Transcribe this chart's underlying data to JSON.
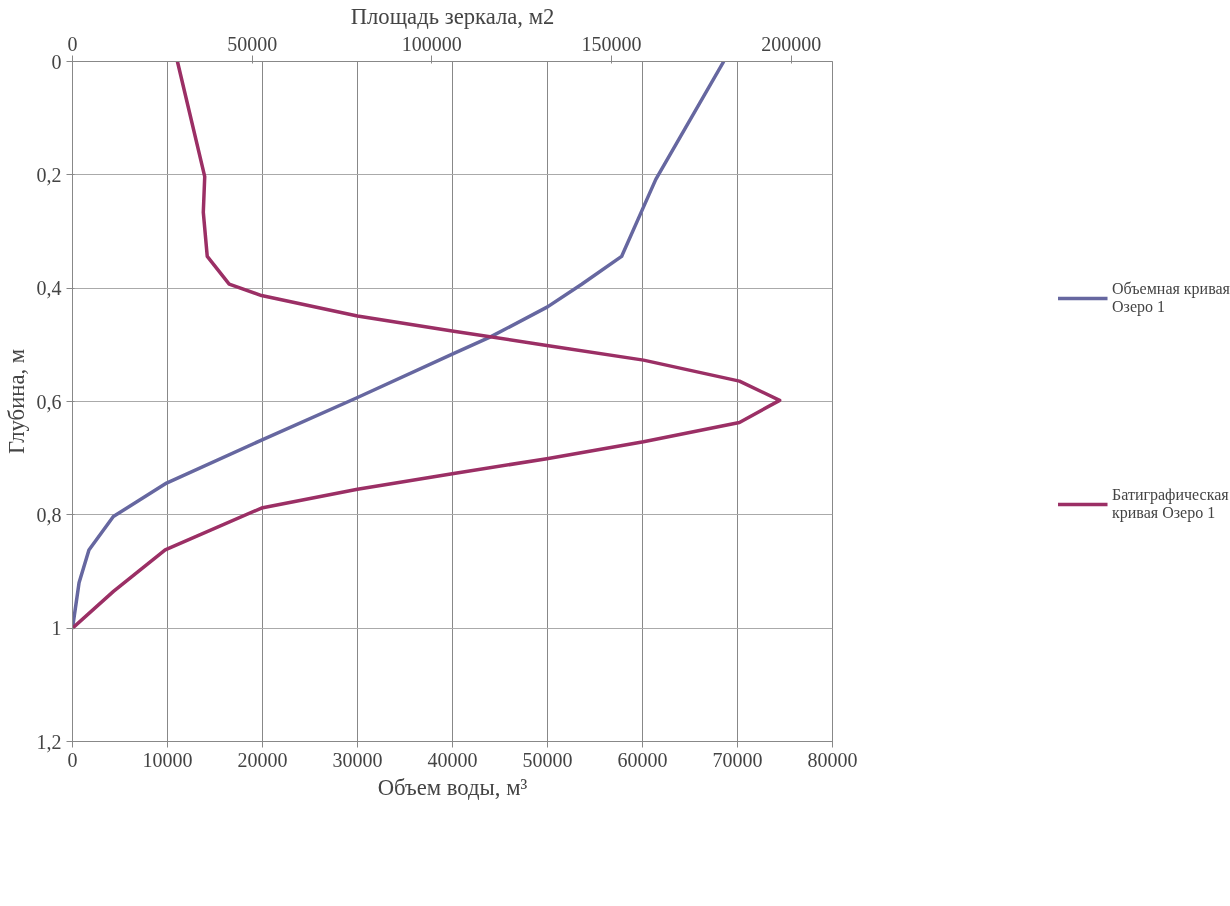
{
  "chart_data": {
    "type": "line",
    "xlabel": "Объем воды, м³",
    "x2label": "Площадь зеркала, м2",
    "ylabel": "Глубина, м",
    "xlim": [
      0,
      80000
    ],
    "xticks": [
      0,
      10000,
      20000,
      30000,
      40000,
      50000,
      60000,
      70000,
      80000
    ],
    "x2lim": [
      0,
      211500
    ],
    "x2ticks": [
      0,
      50000,
      100000,
      150000,
      200000
    ],
    "ylim": [
      1.2,
      0
    ],
    "yticks": [
      {
        "value": 0,
        "label": "0"
      },
      {
        "value": 0.2,
        "label": "0,2"
      },
      {
        "value": 0.4,
        "label": "0,4"
      },
      {
        "value": 0.6,
        "label": "0,6"
      },
      {
        "value": 0.8,
        "label": "0,8"
      },
      {
        "value": 1,
        "label": "1"
      },
      {
        "value": 1.2,
        "label": "1,2"
      }
    ],
    "grid": true,
    "legend": "right",
    "marker": "none",
    "line_style": "solid",
    "series": [
      {
        "name": "Объемная кривая Озеро 1",
        "color": "#6667a0",
        "x": [
          68550,
          61400,
          60100,
          57800,
          53600,
          50000,
          44000,
          40150,
          30000,
          19900,
          9900,
          4300,
          1730,
          690,
          0
        ],
        "values": [
          0,
          0.208,
          0.257,
          0.344,
          0.393,
          0.433,
          0.486,
          0.515,
          0.593,
          0.668,
          0.744,
          0.803,
          0.862,
          0.92,
          1.0
        ]
      },
      {
        "name": "Батиграфическая кривая Озеро 1",
        "color": "#9b2f65",
        "axis": "x2",
        "x": [
          29200,
          36800,
          36400,
          37500,
          43600,
          52600,
          79300,
          106100,
          132000,
          158900,
          185600,
          196800,
          185600,
          158900,
          132000,
          106100,
          79300,
          52600,
          25800,
          11400,
          0
        ],
        "values": [
          0,
          0.203,
          0.266,
          0.344,
          0.393,
          0.413,
          0.449,
          0.476,
          0.501,
          0.527,
          0.564,
          0.598,
          0.637,
          0.671,
          0.701,
          0.727,
          0.755,
          0.788,
          0.862,
          0.935,
          1.0
        ]
      }
    ]
  }
}
